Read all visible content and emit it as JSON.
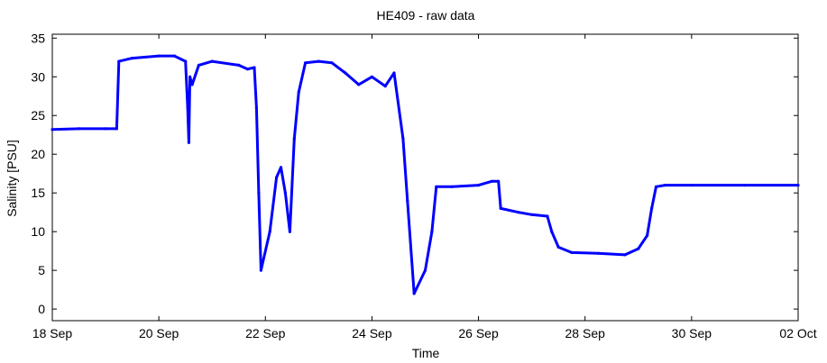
{
  "chart_data": {
    "type": "scatter",
    "title": "HE409 - raw data",
    "xlabel": "Time",
    "ylabel": "Salinity [PSU]",
    "xlim": [
      "2000-09-18",
      "2000-10-02"
    ],
    "ylim": [
      -1.5,
      35.5
    ],
    "x_ticks": [
      "18 Sep",
      "20 Sep",
      "22 Sep",
      "24 Sep",
      "26 Sep",
      "28 Sep",
      "30 Sep",
      "02 Oct"
    ],
    "y_ticks": [
      0,
      5,
      10,
      15,
      20,
      25,
      30,
      35
    ],
    "grid": false,
    "series": [
      {
        "color": "#0000ff",
        "points": [
          [
            "2000-09-18T00:00",
            23.2
          ],
          [
            "2000-09-18T12:00",
            23.3
          ],
          [
            "2000-09-19T00:00",
            23.3
          ],
          [
            "2000-09-19T05:00",
            23.3
          ],
          [
            "2000-09-19T06:00",
            32.0
          ],
          [
            "2000-09-19T12:00",
            32.4
          ],
          [
            "2000-09-20T00:00",
            32.7
          ],
          [
            "2000-09-20T07:00",
            32.7
          ],
          [
            "2000-09-20T12:00",
            32.0
          ],
          [
            "2000-09-20T14:00",
            30.0
          ],
          [
            "2000-09-20T13:00",
            26.0
          ],
          [
            "2000-09-20T13:30",
            21.5
          ],
          [
            "2000-09-20T15:00",
            29.0
          ],
          [
            "2000-09-20T18:00",
            31.5
          ],
          [
            "2000-09-21T00:00",
            32.0
          ],
          [
            "2000-09-21T12:00",
            31.5
          ],
          [
            "2000-09-21T16:00",
            31.0
          ],
          [
            "2000-09-21T19:00",
            31.2
          ],
          [
            "2000-09-21T20:00",
            26.0
          ],
          [
            "2000-09-21T21:00",
            15.0
          ],
          [
            "2000-09-21T22:00",
            5.0
          ],
          [
            "2000-09-22T02:00",
            10.0
          ],
          [
            "2000-09-22T05:00",
            17.0
          ],
          [
            "2000-09-22T07:00",
            18.3
          ],
          [
            "2000-09-22T09:00",
            15.0
          ],
          [
            "2000-09-22T11:00",
            10.0
          ],
          [
            "2000-09-22T13:00",
            22.0
          ],
          [
            "2000-09-22T15:00",
            28.0
          ],
          [
            "2000-09-22T18:00",
            31.8
          ],
          [
            "2000-09-23T00:00",
            32.0
          ],
          [
            "2000-09-23T06:00",
            31.8
          ],
          [
            "2000-09-23T12:00",
            30.5
          ],
          [
            "2000-09-23T18:00",
            29.0
          ],
          [
            "2000-09-24T00:00",
            30.0
          ],
          [
            "2000-09-24T06:00",
            28.8
          ],
          [
            "2000-09-24T10:00",
            30.5
          ],
          [
            "2000-09-24T14:00",
            22.0
          ],
          [
            "2000-09-24T16:00",
            14.0
          ],
          [
            "2000-09-24T19:00",
            2.0
          ],
          [
            "2000-09-25T00:00",
            5.0
          ],
          [
            "2000-09-25T03:00",
            10.0
          ],
          [
            "2000-09-25T05:00",
            15.8
          ],
          [
            "2000-09-25T12:00",
            15.8
          ],
          [
            "2000-09-26T00:00",
            16.0
          ],
          [
            "2000-09-26T06:00",
            16.5
          ],
          [
            "2000-09-26T09:00",
            16.5
          ],
          [
            "2000-09-26T10:00",
            13.0
          ],
          [
            "2000-09-26T18:00",
            12.5
          ],
          [
            "2000-09-27T00:00",
            12.2
          ],
          [
            "2000-09-27T07:00",
            12.0
          ],
          [
            "2000-09-27T09:00",
            10.0
          ],
          [
            "2000-09-27T12:00",
            8.0
          ],
          [
            "2000-09-27T18:00",
            7.3
          ],
          [
            "2000-09-28T06:00",
            7.2
          ],
          [
            "2000-09-28T18:00",
            7.0
          ],
          [
            "2000-09-29T00:00",
            7.8
          ],
          [
            "2000-09-29T04:00",
            9.5
          ],
          [
            "2000-09-29T06:00",
            13.0
          ],
          [
            "2000-09-29T08:00",
            15.8
          ],
          [
            "2000-09-29T12:00",
            16.0
          ],
          [
            "2000-09-30T00:00",
            16.0
          ],
          [
            "2000-10-01T00:00",
            16.0
          ],
          [
            "2000-10-02T00:00",
            16.0
          ]
        ]
      }
    ]
  }
}
